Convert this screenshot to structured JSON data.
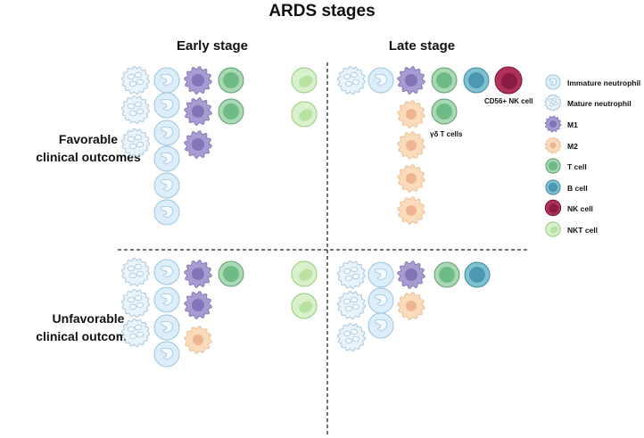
{
  "title": "ARDS stages",
  "columns": {
    "early": "Early stage",
    "late": "Late stage"
  },
  "rows": {
    "favorable": [
      "Favorable",
      "clinical outcomes"
    ],
    "unfavorable": [
      "Unfavorable",
      "clinical outcomes"
    ]
  },
  "annotations": {
    "nk": "CD56+ NK cell",
    "gd": "γδ T cells"
  },
  "legend": [
    {
      "type": "immature",
      "label": "Immature neutrophil"
    },
    {
      "type": "mature",
      "label": "Mature neutrophil"
    },
    {
      "type": "m1",
      "label": "M1"
    },
    {
      "type": "m2",
      "label": "M2"
    },
    {
      "type": "t",
      "label": "T cell"
    },
    {
      "type": "b",
      "label": "B cell"
    },
    {
      "type": "nk",
      "label": "NK cell"
    },
    {
      "type": "nkt",
      "label": "NKT cell"
    }
  ],
  "colors": {
    "immature_fill": "#dbeef9",
    "immature_stroke": "#9cc6df",
    "mature_fill": "#e9f3fa",
    "mature_stroke": "#a8c7dc",
    "m1_fill": "#a79bd2",
    "m1_nucleus": "#8175b8",
    "m2_fill": "#fadbbc",
    "m2_nucleus": "#efb592",
    "t_fill": "#a9d8b3",
    "t_nucleus": "#6fbb86",
    "b_fill": "#7fc0d1",
    "b_nucleus": "#4b98b2",
    "nk_fill": "#b0315a",
    "nk_nucleus": "#8a1b44",
    "nkt_fill": "#d8f0cb",
    "nkt_nucleus": "#b7e2a2"
  }
}
